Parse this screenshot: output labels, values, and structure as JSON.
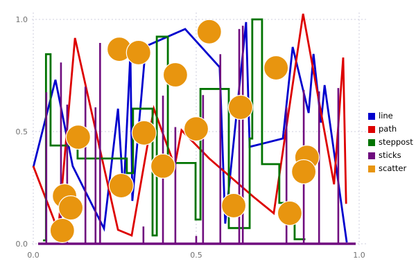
{
  "chart_data": {
    "type": "mixed",
    "title": "",
    "xlabel": "",
    "ylabel": "",
    "xlim": [
      0.0,
      1.0
    ],
    "ylim": [
      0.0,
      1.0
    ],
    "grid": "dashed, on both axes at tick positions",
    "x_ticks": [
      {
        "value": 0.0,
        "label": "0.0"
      },
      {
        "value": 0.5,
        "label": "0.5"
      },
      {
        "value": 1.0,
        "label": "1.0"
      }
    ],
    "y_ticks": [
      {
        "value": 0.0,
        "label": "0.0"
      },
      {
        "value": 0.5,
        "label": "0.5"
      },
      {
        "value": 1.0,
        "label": "1.0"
      }
    ],
    "tick_color": "#707070",
    "grid_color": "#ccccdd",
    "legend": {
      "position": "right-outside",
      "entries": [
        "line",
        "path",
        "steppost",
        "sticks",
        "scatter"
      ]
    },
    "series": [
      {
        "name": "line",
        "type": "line",
        "color": "#0000CD",
        "line_width": 2.8,
        "points": [
          [
            0.0,
            0.34
          ],
          [
            0.068,
            0.731
          ],
          [
            0.121,
            0.346
          ],
          [
            0.217,
            0.068
          ],
          [
            0.26,
            0.602
          ],
          [
            0.277,
            0.215
          ],
          [
            0.298,
            0.849
          ],
          [
            0.304,
            0.191
          ],
          [
            0.345,
            0.88
          ],
          [
            0.466,
            0.957
          ],
          [
            0.572,
            0.787
          ],
          [
            0.589,
            0.09
          ],
          [
            0.653,
            0.988
          ],
          [
            0.664,
            0.432
          ],
          [
            0.766,
            0.469
          ],
          [
            0.796,
            0.877
          ],
          [
            0.845,
            0.583
          ],
          [
            0.86,
            0.846
          ],
          [
            0.883,
            0.54
          ],
          [
            0.894,
            0.707
          ],
          [
            0.962,
            0.006
          ]
        ]
      },
      {
        "name": "path",
        "type": "line",
        "color": "#DD0000",
        "line_width": 2.8,
        "points": [
          [
            0.0,
            0.346
          ],
          [
            0.064,
            0.105
          ],
          [
            0.074,
            0.015
          ],
          [
            0.128,
            0.917
          ],
          [
            0.26,
            0.062
          ],
          [
            0.302,
            0.037
          ],
          [
            0.37,
            0.602
          ],
          [
            0.434,
            0.346
          ],
          [
            0.455,
            0.506
          ],
          [
            0.54,
            0.38
          ],
          [
            0.675,
            0.21
          ],
          [
            0.738,
            0.136
          ],
          [
            0.828,
            1.025
          ],
          [
            0.923,
            0.265
          ],
          [
            0.951,
            0.83
          ],
          [
            0.96,
            0.178
          ]
        ]
      },
      {
        "name": "steppost",
        "type": "steps-post",
        "color": "#007300",
        "line_width": 2.8,
        "points": [
          [
            0.03,
            0.015
          ],
          [
            0.039,
            0.845
          ],
          [
            0.053,
            0.438
          ],
          [
            0.136,
            0.38
          ],
          [
            0.287,
            0.315
          ],
          [
            0.306,
            0.602
          ],
          [
            0.366,
            0.037
          ],
          [
            0.379,
            0.923
          ],
          [
            0.413,
            0.36
          ],
          [
            0.498,
            0.108
          ],
          [
            0.513,
            0.69
          ],
          [
            0.6,
            0.07
          ],
          [
            0.664,
            0.469
          ],
          [
            0.672,
            1.0
          ],
          [
            0.702,
            0.355
          ],
          [
            0.755,
            0.182
          ],
          [
            0.802,
            0.02
          ],
          [
            0.835,
            0.02
          ]
        ]
      },
      {
        "name": "sticks",
        "type": "sticks",
        "color": "#6F0C7E",
        "line_width": 2.6,
        "baseline": 0.0,
        "baseline_width": 3.5,
        "points": [
          [
            0.04,
            0.675
          ],
          [
            0.085,
            0.808
          ],
          [
            0.104,
            0.62
          ],
          [
            0.16,
            0.7
          ],
          [
            0.191,
            0.608
          ],
          [
            0.205,
            0.895
          ],
          [
            0.338,
            0.077
          ],
          [
            0.398,
            0.66
          ],
          [
            0.436,
            0.52
          ],
          [
            0.5,
            0.035
          ],
          [
            0.521,
            0.663
          ],
          [
            0.574,
            0.845
          ],
          [
            0.632,
            0.957
          ],
          [
            0.643,
            0.972
          ],
          [
            0.777,
            0.608
          ],
          [
            0.83,
            0.685
          ],
          [
            0.877,
            0.679
          ],
          [
            0.936,
            0.694
          ]
        ]
      },
      {
        "name": "scatter",
        "type": "scatter",
        "color": "#E8950F",
        "marker_radius": 17.5,
        "marker_edge": "#ffffff",
        "points": [
          [
            0.264,
            0.867
          ],
          [
            0.323,
            0.852
          ],
          [
            0.436,
            0.753
          ],
          [
            0.54,
            0.945
          ],
          [
            0.745,
            0.784
          ],
          [
            0.636,
            0.608
          ],
          [
            0.5,
            0.512
          ],
          [
            0.34,
            0.494
          ],
          [
            0.138,
            0.475
          ],
          [
            0.398,
            0.346
          ],
          [
            0.27,
            0.259
          ],
          [
            0.096,
            0.213
          ],
          [
            0.115,
            0.16
          ],
          [
            0.089,
            0.059
          ],
          [
            0.615,
            0.17
          ],
          [
            0.787,
            0.136
          ],
          [
            0.84,
            0.385
          ],
          [
            0.83,
            0.321
          ]
        ]
      }
    ]
  }
}
